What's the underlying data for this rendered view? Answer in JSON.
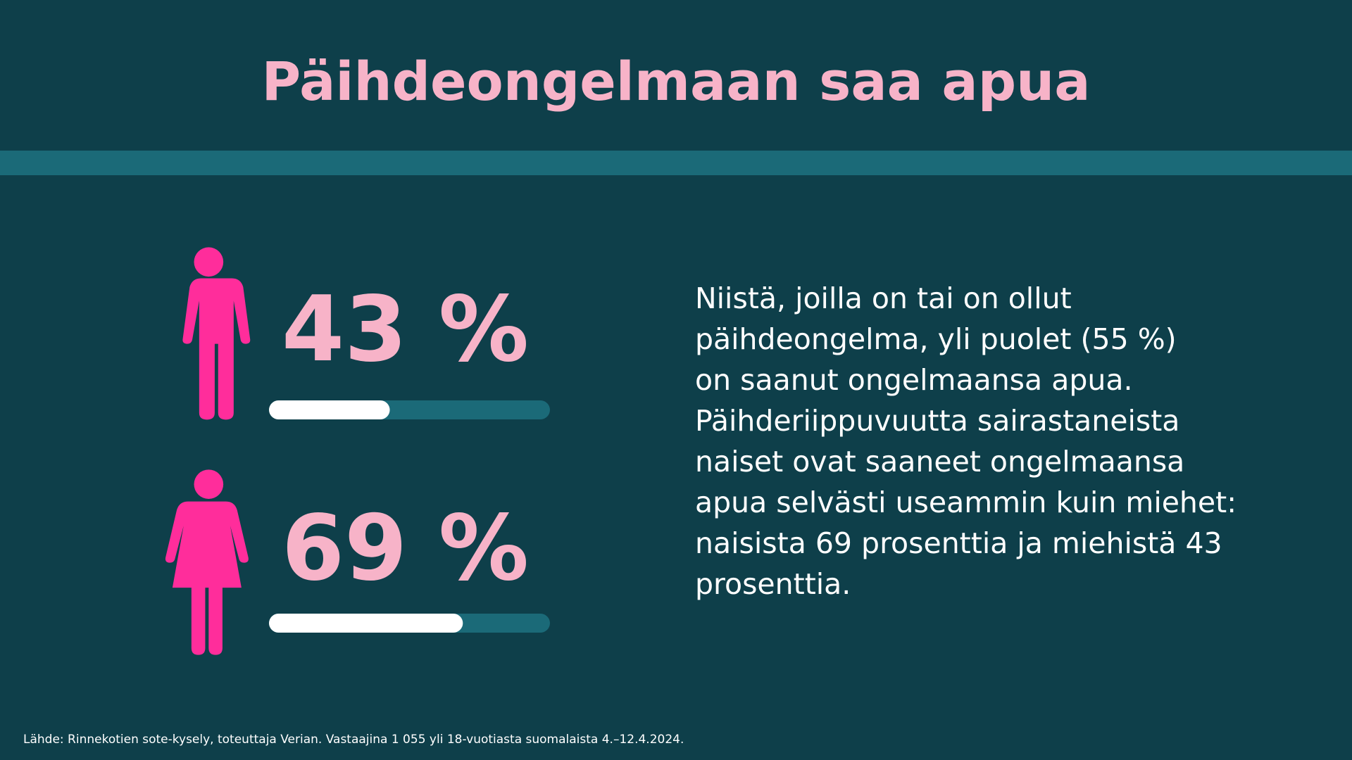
{
  "chart_data": {
    "type": "progress",
    "title": "Päihdeongelmaan saa apua",
    "values": [
      43,
      69
    ],
    "value_labels": [
      "43 %",
      "69 %"
    ],
    "xlim": [
      0,
      100
    ],
    "color": "#ffffff",
    "track_color": "#1b6a78",
    "icon_color": "#ff2d9b",
    "label_color": "#f7b3c8"
  },
  "text": {
    "lines": [
      "Niistä, joilla on tai on ollut",
      "päihdeongelma, yli puolet (55 %)",
      "on saanut ongelmaansa apua.",
      "Päihderiippuvuutta sairastaneista",
      "naiset ovat saaneet ongelmaansa",
      "apua selvästi useammin kuin miehet:",
      "naisista 69 prosenttia ja miehistä 43",
      "prosenttia."
    ]
  },
  "source": "Lähde: Rinnekotien sote-kysely, toteuttaja Verian. Vastaajina 1 055 yli 18-vuotiasta suomalaista 4.–12.4.2024."
}
